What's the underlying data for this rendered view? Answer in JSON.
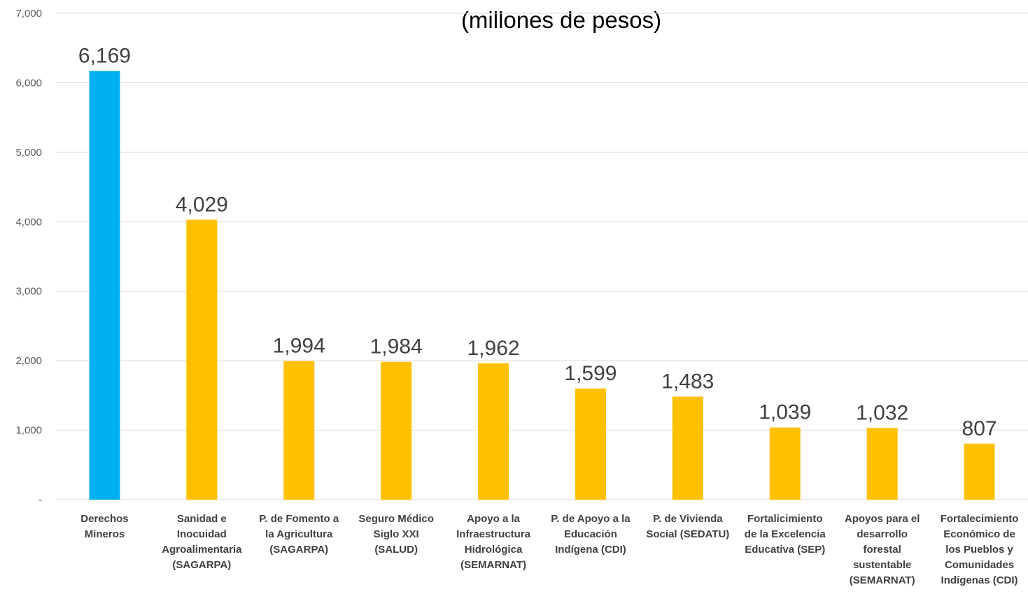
{
  "chart_data": {
    "type": "bar",
    "title": "(millones de pesos)",
    "categories": [
      [
        "Derechos",
        "Mineros"
      ],
      [
        "Sanidad e",
        "Inocuidad",
        "Agroalimentaria",
        "(SAGARPA)"
      ],
      [
        "P. de Fomento a",
        "la Agricultura",
        "(SAGARPA)"
      ],
      [
        "Seguro Médico",
        "Siglo XXI",
        "(SALUD)"
      ],
      [
        "Apoyo a la",
        "Infraestructura",
        "Hidrológica",
        "(SEMARNAT)"
      ],
      [
        "P. de Apoyo a la",
        "Educación",
        "Indígena (CDI)"
      ],
      [
        "P. de Vivienda",
        "Social (SEDATU)"
      ],
      [
        "Fortalicimiento",
        "de la Excelencia",
        "Educativa (SEP)"
      ],
      [
        "Apoyos para el",
        "desarrollo",
        "forestal",
        "sustentable",
        "(SEMARNAT)"
      ],
      [
        "Fortalecimiento",
        "Económico de",
        "los Pueblos y",
        "Comunidades",
        "Indígenas (CDI)"
      ]
    ],
    "values": [
      6169,
      4029,
      1994,
      1984,
      1962,
      1599,
      1483,
      1039,
      1032,
      807
    ],
    "data_labels": [
      "6,169",
      "4,029",
      "1,994",
      "1,984",
      "1,962",
      "1,599",
      "1,483",
      "1,039",
      "1,032",
      "807"
    ],
    "colors": [
      "#00b0f0",
      "#ffc000",
      "#ffc000",
      "#ffc000",
      "#ffc000",
      "#ffc000",
      "#ffc000",
      "#ffc000",
      "#ffc000",
      "#ffc000"
    ],
    "ylim": [
      0,
      7000
    ],
    "yticks": [
      0,
      1000,
      2000,
      3000,
      4000,
      5000,
      6000,
      7000
    ],
    "ytick_labels": [
      "-",
      "1,000",
      "2,000",
      "3,000",
      "4,000",
      "5,000",
      "6,000",
      "7,000"
    ],
    "grid": true,
    "xlabel": "",
    "ylabel": ""
  }
}
